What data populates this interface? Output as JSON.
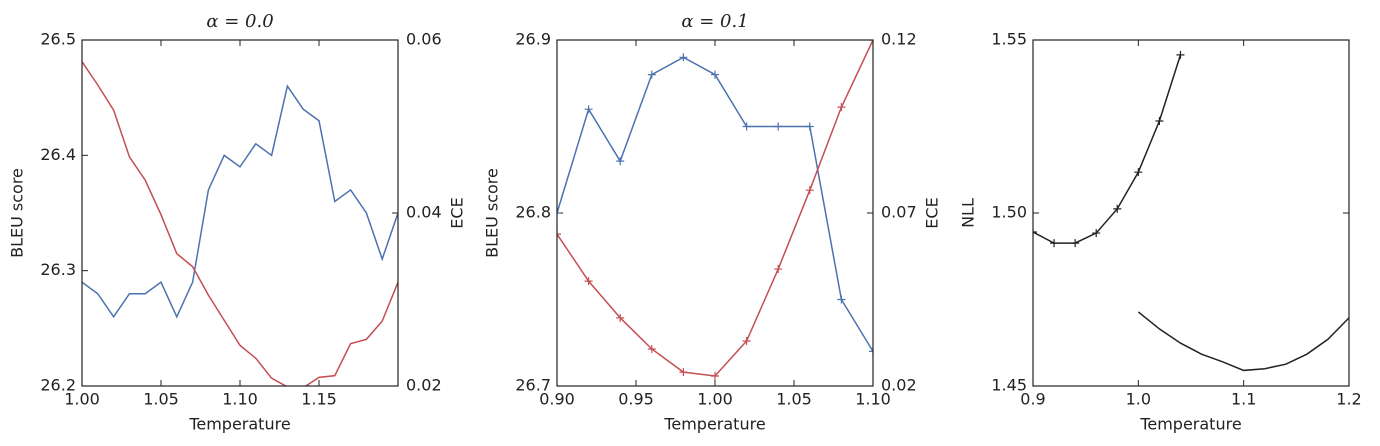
{
  "chart_data": [
    {
      "type": "line",
      "title": "α = 0.0",
      "xlabel": "Temperature",
      "ylabel": "BLEU score",
      "y2label": "ECE",
      "x": [
        1.0,
        1.01,
        1.02,
        1.03,
        1.04,
        1.05,
        1.06,
        1.07,
        1.08,
        1.09,
        1.1,
        1.11,
        1.12,
        1.13,
        1.14,
        1.15,
        1.16,
        1.17,
        1.18,
        1.19,
        1.2
      ],
      "xlim": [
        1.0,
        1.2
      ],
      "ylim": [
        26.2,
        26.5
      ],
      "y2lim": [
        0.02,
        0.06
      ],
      "xticks": [
        {
          "value": 1.0,
          "label": "1.00"
        },
        1.05,
        {
          "value": 1.1,
          "label": "1.10"
        },
        1.15
      ],
      "yticks": [
        26.2,
        26.3,
        26.4,
        26.5
      ],
      "y2ticks": [
        0.02,
        0.04,
        0.06
      ],
      "series": [
        {
          "color": "#4c72b0",
          "values": [
            26.29,
            26.28,
            26.26,
            26.28,
            26.28,
            26.29,
            26.26,
            26.29,
            26.37,
            26.4,
            26.39,
            26.41,
            26.4,
            26.46,
            26.44,
            26.43,
            26.36,
            26.37,
            26.35,
            26.31,
            26.35
          ]
        },
        {
          "color": "#c44e52",
          "axis": "y2",
          "values": [
            0.0575,
            0.0548,
            0.0519,
            0.0465,
            0.0438,
            0.0398,
            0.0353,
            0.0338,
            0.0305,
            0.0276,
            0.0247,
            0.0232,
            0.0209,
            0.0199,
            0.0198,
            0.021,
            0.0212,
            0.0249,
            0.0254,
            0.0275,
            0.032
          ]
        }
      ]
    },
    {
      "type": "line",
      "title": "α = 0.1",
      "xlabel": "Temperature",
      "ylabel": "BLEU score",
      "y2label": "ECE",
      "x": [
        0.9,
        0.92,
        0.94,
        0.96,
        0.98,
        1.0,
        1.02,
        1.04,
        1.06,
        1.08,
        1.1
      ],
      "xlim": [
        0.9,
        1.1
      ],
      "ylim": [
        26.7,
        26.9
      ],
      "y2lim": [
        0.02,
        0.12
      ],
      "xticks": [
        {
          "value": 0.9,
          "label": "0.90"
        },
        0.95,
        {
          "value": 1.0,
          "label": "1.00"
        },
        1.05,
        {
          "value": 1.1,
          "label": "1.10"
        }
      ],
      "yticks": [
        26.7,
        26.8,
        26.9
      ],
      "y2ticks": [
        0.02,
        0.07,
        0.12
      ],
      "series": [
        {
          "color": "#4c72b0",
          "marker": "+",
          "values": [
            26.8,
            26.86,
            26.83,
            26.88,
            26.89,
            26.88,
            26.85,
            26.85,
            26.85,
            26.75,
            26.72
          ]
        },
        {
          "color": "#c44e52",
          "marker": "+",
          "axis": "y2",
          "values": [
            0.0639,
            0.0503,
            0.0397,
            0.0307,
            0.024,
            0.0229,
            0.033,
            0.0538,
            0.0766,
            0.1006,
            0.12
          ]
        }
      ]
    },
    {
      "type": "line",
      "xlabel": "Temperature",
      "ylabel": "NLL",
      "xlim": [
        0.9,
        1.2
      ],
      "ylim": [
        1.45,
        1.55
      ],
      "xticks": [
        0.9,
        {
          "value": 1.0,
          "label": "1.0"
        },
        1.1,
        1.2
      ],
      "yticks": [
        1.45,
        {
          "value": 1.5,
          "label": "1.50"
        },
        1.55
      ],
      "series": [
        {
          "color": "#222222",
          "marker": "+",
          "x": [
            0.9,
            0.92,
            0.94,
            0.96,
            0.98,
            1.0,
            1.02,
            1.04
          ],
          "values": [
            1.4945,
            1.4913,
            1.4913,
            1.4942,
            1.5012,
            1.5118,
            1.5266,
            1.5457
          ]
        },
        {
          "color": "#222222",
          "x": [
            1.0,
            1.02,
            1.04,
            1.06,
            1.08,
            1.1,
            1.12,
            1.14,
            1.16,
            1.18,
            1.2
          ],
          "values": [
            1.4714,
            1.4665,
            1.4624,
            1.4592,
            1.457,
            1.4545,
            1.455,
            1.4563,
            1.4592,
            1.4635,
            1.4697
          ]
        }
      ]
    }
  ]
}
